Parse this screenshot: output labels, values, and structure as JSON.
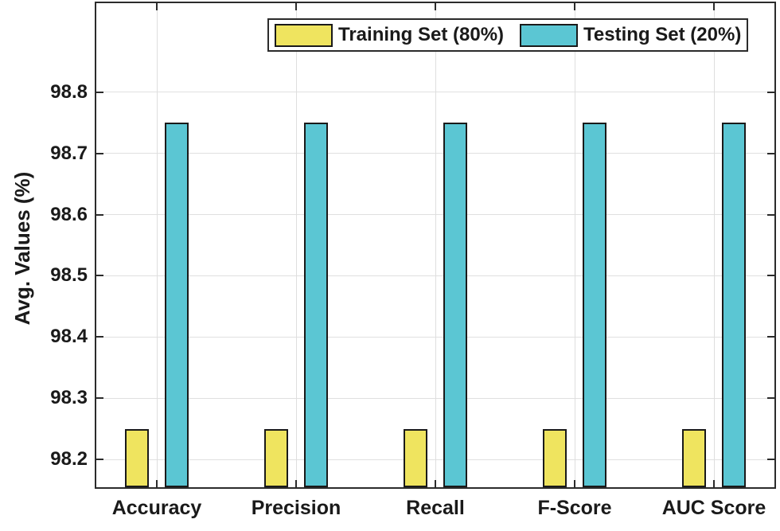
{
  "figure": {
    "ylabel": "Avg. Values (%)"
  },
  "chart_data": {
    "type": "bar",
    "title": "",
    "xlabel": "",
    "ylabel": "Avg. Values (%)",
    "categories": [
      "Accuracy",
      "Precision",
      "Recall",
      "F-Score",
      "AUC Score"
    ],
    "series": [
      {
        "name": "Training Set (80%)",
        "values": [
          98.25,
          98.25,
          98.25,
          98.25,
          98.25
        ],
        "color": "#efe45f"
      },
      {
        "name": "Testing Set (20%)",
        "values": [
          98.75,
          98.75,
          98.75,
          98.75,
          98.75
        ],
        "color": "#5bc6d3"
      }
    ],
    "ylim": [
      98.155,
      98.945
    ],
    "yticks": [
      98.2,
      98.3,
      98.4,
      98.5,
      98.6,
      98.7,
      98.8
    ],
    "ytick_labels": [
      "98.2",
      "98.3",
      "98.4",
      "98.5",
      "98.6",
      "98.7",
      "98.8"
    ],
    "grid": true,
    "grid_vertical": true,
    "legend_position": "top-inside",
    "colors": {
      "bar_edge": "#1a1a1a",
      "axis": "#2b2b2b",
      "grid": "#e0e0e0",
      "background": "#ffffff",
      "text": "#1a1a1a"
    }
  }
}
